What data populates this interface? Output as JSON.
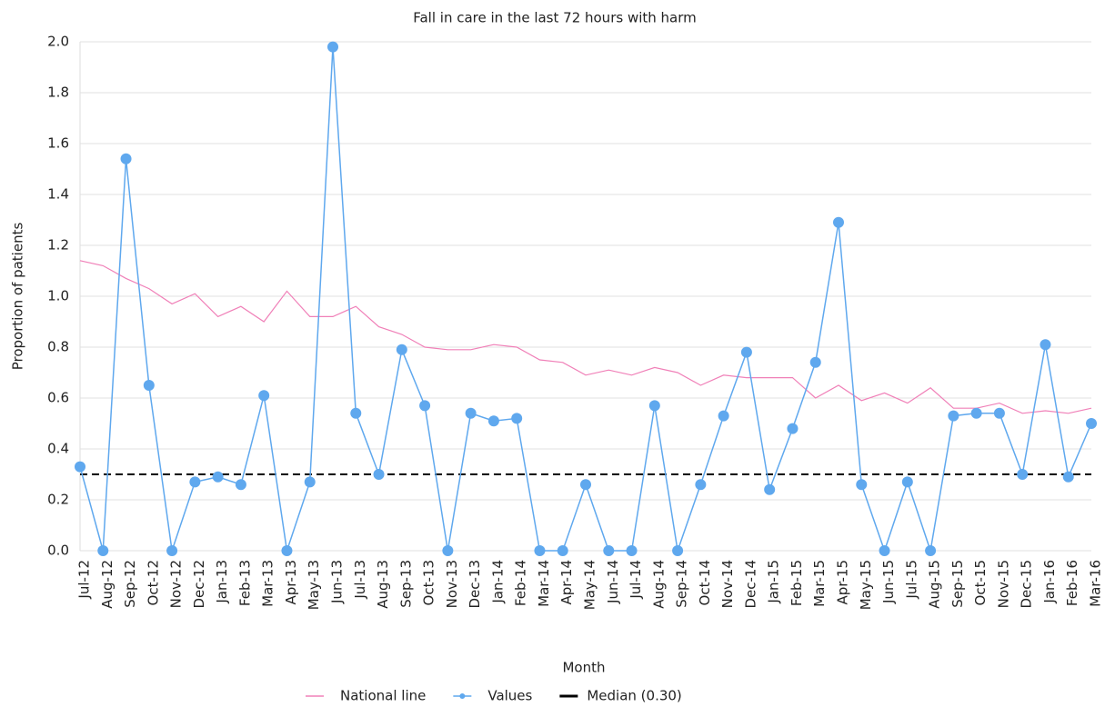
{
  "chart_data": {
    "type": "line",
    "title": "Fall in care in the last 72 hours with harm",
    "x_label": "Month",
    "y_label": "Proportion of patients",
    "categories": [
      "Jul-12",
      "Aug-12",
      "Sep-12",
      "Oct-12",
      "Nov-12",
      "Dec-12",
      "Jan-13",
      "Feb-13",
      "Mar-13",
      "Apr-13",
      "May-13",
      "Jun-13",
      "Jul-13",
      "Aug-13",
      "Sep-13",
      "Oct-13",
      "Nov-13",
      "Dec-13",
      "Jan-14",
      "Feb-14",
      "Mar-14",
      "Apr-14",
      "May-14",
      "Jun-14",
      "Jul-14",
      "Aug-14",
      "Sep-14",
      "Oct-14",
      "Nov-14",
      "Dec-14",
      "Jan-15",
      "Feb-15",
      "Mar-15",
      "Apr-15",
      "May-15",
      "Jun-15",
      "Jul-15",
      "Aug-15",
      "Sep-15",
      "Oct-15",
      "Nov-15",
      "Dec-15",
      "Jan-16",
      "Feb-16",
      "Mar-16"
    ],
    "series": [
      {
        "name": "National line",
        "color": "#f080b8",
        "markers": false,
        "values": [
          1.14,
          1.12,
          1.07,
          1.03,
          0.97,
          1.01,
          0.92,
          0.96,
          0.9,
          1.02,
          0.92,
          0.92,
          0.96,
          0.88,
          0.85,
          0.8,
          0.79,
          0.79,
          0.81,
          0.8,
          0.75,
          0.74,
          0.69,
          0.71,
          0.69,
          0.72,
          0.7,
          0.65,
          0.69,
          0.68,
          0.68,
          0.68,
          0.6,
          0.65,
          0.59,
          0.62,
          0.58,
          0.64,
          0.56,
          0.56,
          0.58,
          0.54,
          0.55,
          0.54,
          0.56
        ]
      },
      {
        "name": "Values",
        "color": "#5fa8ee",
        "markers": true,
        "values": [
          0.33,
          0,
          1.54,
          0.65,
          0,
          0.27,
          0.29,
          0.26,
          0.61,
          0,
          0.27,
          1.98,
          0.54,
          0.3,
          0.79,
          0.57,
          0,
          0.54,
          0.51,
          0.52,
          0,
          0,
          0.26,
          0,
          0,
          0.57,
          0,
          0.26,
          0.53,
          0.78,
          0.24,
          0.48,
          0.74,
          1.29,
          0.26,
          0,
          0.27,
          0,
          0.53,
          0.54,
          0.54,
          0.3,
          0.81,
          0.29,
          0.5
        ]
      }
    ],
    "median": {
      "name": "Median (0.30)",
      "value": 0.3,
      "color": "#000000"
    },
    "ylim": [
      0,
      2
    ],
    "yticks": [
      {
        "value": 0,
        "label": "0.0"
      },
      0.2,
      0.4,
      0.6,
      0.8,
      {
        "value": 1,
        "label": "1.0"
      },
      1.2,
      1.4,
      1.6,
      1.8,
      {
        "value": 2,
        "label": "2.0"
      }
    ],
    "grid": true,
    "legend": "bottom"
  }
}
